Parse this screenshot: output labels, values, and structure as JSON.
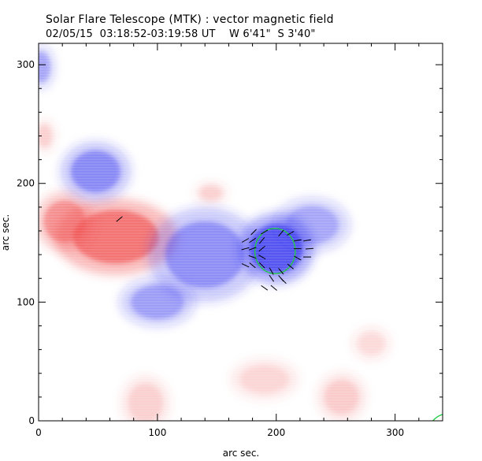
{
  "chart_data": {
    "type": "heatmap",
    "title": "Solar Flare Telescope (MTK) : vector magnetic field",
    "subtitle": "02/05/15  03:18:52-03:19:58 UT    W 6'41\"  S 3'40\"",
    "xlabel": "arc sec.",
    "ylabel": "arc sec.",
    "xlim": [
      0,
      340
    ],
    "ylim": [
      0,
      318
    ],
    "x_ticks": [
      0,
      100,
      200,
      300
    ],
    "y_ticks": [
      0,
      100,
      200,
      300
    ],
    "x_tick_labels": [
      "0",
      "100",
      "200",
      "300"
    ],
    "y_tick_labels": [
      "0",
      "100",
      "200",
      "300"
    ],
    "colors": {
      "positive": "#ee3b3b",
      "negative": "#2a2aee",
      "contour": "#22cc44",
      "vector": "#000000"
    },
    "positive_regions": [
      {
        "name": "main-red",
        "cx": 65,
        "cy": 155,
        "rx": 45,
        "ry": 28,
        "strength": 0.85
      },
      {
        "name": "left-red",
        "cx": 22,
        "cy": 168,
        "rx": 22,
        "ry": 22,
        "strength": 0.6
      },
      {
        "name": "small-red",
        "cx": 145,
        "cy": 192,
        "rx": 12,
        "ry": 8,
        "strength": 0.2
      },
      {
        "name": "bottom-red-1",
        "cx": 90,
        "cy": 15,
        "rx": 18,
        "ry": 20,
        "strength": 0.2
      },
      {
        "name": "bottom-red-2",
        "cx": 190,
        "cy": 35,
        "rx": 25,
        "ry": 15,
        "strength": 0.15
      },
      {
        "name": "bottom-red-3",
        "cx": 255,
        "cy": 20,
        "rx": 18,
        "ry": 18,
        "strength": 0.22
      },
      {
        "name": "bottom-red-4",
        "cx": 280,
        "cy": 65,
        "rx": 14,
        "ry": 12,
        "strength": 0.12
      },
      {
        "name": "left-edge-red",
        "cx": 5,
        "cy": 240,
        "rx": 8,
        "ry": 12,
        "strength": 0.2
      }
    ],
    "negative_regions": [
      {
        "name": "upper-left-blue",
        "cx": 48,
        "cy": 210,
        "rx": 26,
        "ry": 22,
        "strength": 0.6
      },
      {
        "name": "central-blue",
        "cx": 140,
        "cy": 140,
        "rx": 42,
        "ry": 35,
        "strength": 0.55
      },
      {
        "name": "lower-blue",
        "cx": 100,
        "cy": 100,
        "rx": 28,
        "ry": 18,
        "strength": 0.45
      },
      {
        "name": "core-blue",
        "cx": 200,
        "cy": 145,
        "rx": 28,
        "ry": 26,
        "strength": 1.0
      },
      {
        "name": "right-blue",
        "cx": 230,
        "cy": 165,
        "rx": 28,
        "ry": 20,
        "strength": 0.4
      },
      {
        "name": "top-left-blue",
        "cx": 2,
        "cy": 298,
        "rx": 10,
        "ry": 16,
        "strength": 0.4
      }
    ],
    "contours": [
      {
        "name": "umbra-contour",
        "cx": 199,
        "cy": 143,
        "rx": 17,
        "ry": 19
      },
      {
        "name": "corner-contour",
        "cx": 345,
        "cy": -8,
        "rx": 16,
        "ry": 14
      }
    ],
    "vectors": [
      {
        "x": 181,
        "y": 159,
        "a": 45
      },
      {
        "x": 190,
        "y": 159,
        "a": 30
      },
      {
        "x": 180,
        "y": 152,
        "a": 35
      },
      {
        "x": 188,
        "y": 152,
        "a": 50
      },
      {
        "x": 180,
        "y": 145,
        "a": 20
      },
      {
        "x": 188,
        "y": 145,
        "a": 40
      },
      {
        "x": 180,
        "y": 138,
        "a": -20
      },
      {
        "x": 188,
        "y": 138,
        "a": -30
      },
      {
        "x": 180,
        "y": 131,
        "a": -40
      },
      {
        "x": 188,
        "y": 131,
        "a": -45
      },
      {
        "x": 196,
        "y": 126,
        "a": -60
      },
      {
        "x": 204,
        "y": 126,
        "a": -50
      },
      {
        "x": 212,
        "y": 130,
        "a": -40
      },
      {
        "x": 218,
        "y": 137,
        "a": -30
      },
      {
        "x": 218,
        "y": 145,
        "a": 0
      },
      {
        "x": 218,
        "y": 152,
        "a": 10
      },
      {
        "x": 212,
        "y": 158,
        "a": 30
      },
      {
        "x": 204,
        "y": 158,
        "a": 50
      },
      {
        "x": 226,
        "y": 138,
        "a": 0
      },
      {
        "x": 228,
        "y": 145,
        "a": 5
      },
      {
        "x": 226,
        "y": 152,
        "a": 10
      },
      {
        "x": 196,
        "y": 120,
        "a": -55
      },
      {
        "x": 204,
        "y": 120,
        "a": -50
      },
      {
        "x": 190,
        "y": 112,
        "a": -35
      },
      {
        "x": 198,
        "y": 112,
        "a": -40
      },
      {
        "x": 206,
        "y": 118,
        "a": -45
      },
      {
        "x": 174,
        "y": 131,
        "a": -25
      },
      {
        "x": 174,
        "y": 145,
        "a": 15
      },
      {
        "x": 174,
        "y": 152,
        "a": 30
      },
      {
        "x": 68,
        "y": 170,
        "a": 40
      }
    ]
  }
}
